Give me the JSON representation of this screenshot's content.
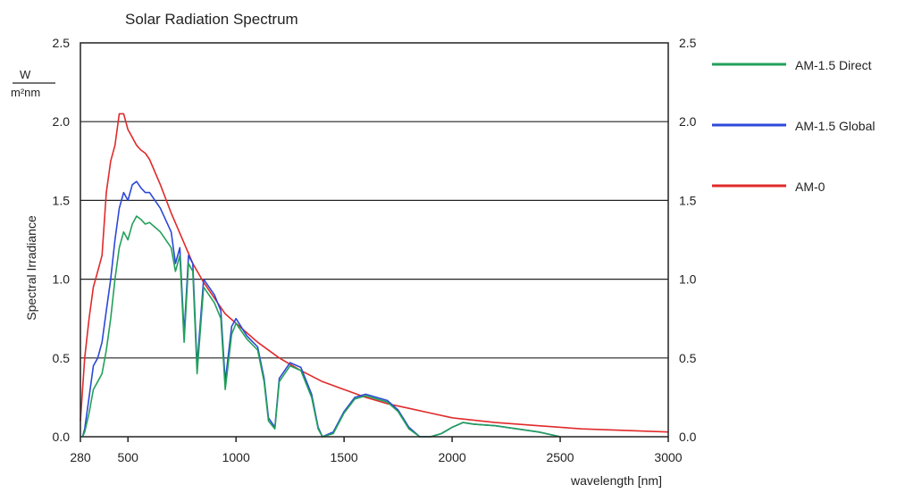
{
  "chart_data": {
    "type": "line",
    "title": "Solar Radiation Spectrum",
    "ylabel": "Spectral Irradiance",
    "y_unit_numerator": "W",
    "y_unit_denominator": "m²nm",
    "xlabel": "wavelength [nm]",
    "xlim": [
      280,
      3000
    ],
    "ylim": [
      0,
      2.5
    ],
    "x_ticks": [
      280,
      500,
      1000,
      1500,
      2000,
      2500,
      3000
    ],
    "x_tick_labels": [
      "280",
      "500",
      "1000",
      "1500",
      "2000",
      "2500",
      "3000"
    ],
    "y_ticks": [
      0,
      0.5,
      1.0,
      1.5,
      2.0,
      2.5
    ],
    "y_tick_labels": [
      "0.0",
      "0.5",
      "1.0",
      "1.5",
      "2.0",
      "2.5"
    ],
    "grid": "horizontal",
    "right_axis": true,
    "legend_position": "right",
    "series": [
      {
        "name": "AM-1.5 Direct",
        "color": "#22a05a",
        "x": [
          290,
          300,
          320,
          340,
          360,
          380,
          400,
          420,
          440,
          460,
          480,
          500,
          520,
          540,
          560,
          580,
          600,
          650,
          700,
          720,
          740,
          760,
          780,
          800,
          820,
          850,
          900,
          930,
          950,
          980,
          1000,
          1050,
          1100,
          1130,
          1150,
          1180,
          1200,
          1250,
          1300,
          1350,
          1380,
          1400,
          1450,
          1500,
          1550,
          1600,
          1650,
          1700,
          1750,
          1800,
          1850,
          1900,
          1950,
          2000,
          2050,
          2100,
          2200,
          2300,
          2400,
          2500
        ],
        "y": [
          0.0,
          0.03,
          0.15,
          0.3,
          0.35,
          0.4,
          0.55,
          0.75,
          1.0,
          1.2,
          1.3,
          1.25,
          1.35,
          1.4,
          1.38,
          1.35,
          1.36,
          1.3,
          1.2,
          1.05,
          1.15,
          0.6,
          1.1,
          1.05,
          0.4,
          0.95,
          0.85,
          0.75,
          0.3,
          0.65,
          0.72,
          0.62,
          0.55,
          0.35,
          0.1,
          0.05,
          0.35,
          0.45,
          0.42,
          0.25,
          0.05,
          0.0,
          0.02,
          0.15,
          0.24,
          0.26,
          0.24,
          0.22,
          0.16,
          0.05,
          0.0,
          0.0,
          0.02,
          0.06,
          0.09,
          0.08,
          0.07,
          0.05,
          0.03,
          0.0
        ]
      },
      {
        "name": "AM-1.5 Global",
        "color": "#2c48d8",
        "x": [
          290,
          300,
          320,
          340,
          360,
          380,
          400,
          420,
          440,
          460,
          480,
          500,
          520,
          540,
          560,
          580,
          600,
          650,
          700,
          720,
          740,
          760,
          780,
          800,
          820,
          850,
          900,
          930,
          950,
          980,
          1000,
          1050,
          1100,
          1130,
          1150,
          1180,
          1200,
          1250,
          1300,
          1350,
          1380,
          1400,
          1450,
          1500,
          1550,
          1600,
          1650,
          1700,
          1750,
          1800,
          1850,
          1900,
          1950,
          2000,
          2050,
          2100,
          2200,
          2300,
          2400,
          2500
        ],
        "y": [
          0.0,
          0.05,
          0.25,
          0.45,
          0.5,
          0.6,
          0.8,
          1.0,
          1.25,
          1.45,
          1.55,
          1.5,
          1.6,
          1.62,
          1.58,
          1.55,
          1.55,
          1.45,
          1.3,
          1.1,
          1.2,
          0.65,
          1.15,
          1.1,
          0.45,
          1.0,
          0.9,
          0.8,
          0.35,
          0.7,
          0.75,
          0.64,
          0.57,
          0.37,
          0.12,
          0.06,
          0.37,
          0.47,
          0.44,
          0.27,
          0.06,
          0.0,
          0.03,
          0.16,
          0.25,
          0.27,
          0.25,
          0.23,
          0.17,
          0.06,
          0.0,
          0.0,
          0.02,
          0.06,
          0.09,
          0.08,
          0.07,
          0.05,
          0.03,
          0.0
        ]
      },
      {
        "name": "AM-0",
        "color": "#e02a2a",
        "x": [
          280,
          300,
          320,
          340,
          360,
          380,
          400,
          420,
          440,
          460,
          480,
          500,
          520,
          540,
          560,
          580,
          600,
          650,
          700,
          750,
          800,
          850,
          900,
          950,
          1000,
          1100,
          1200,
          1300,
          1400,
          1500,
          1600,
          1700,
          1800,
          1900,
          2000,
          2200,
          2400,
          2600,
          2800,
          3000
        ],
        "y": [
          0.1,
          0.5,
          0.75,
          0.95,
          1.05,
          1.15,
          1.55,
          1.75,
          1.85,
          2.05,
          2.05,
          1.95,
          1.9,
          1.85,
          1.82,
          1.8,
          1.76,
          1.6,
          1.42,
          1.26,
          1.1,
          0.98,
          0.88,
          0.78,
          0.72,
          0.6,
          0.5,
          0.42,
          0.35,
          0.3,
          0.25,
          0.21,
          0.18,
          0.15,
          0.12,
          0.09,
          0.07,
          0.05,
          0.04,
          0.03
        ]
      }
    ]
  }
}
